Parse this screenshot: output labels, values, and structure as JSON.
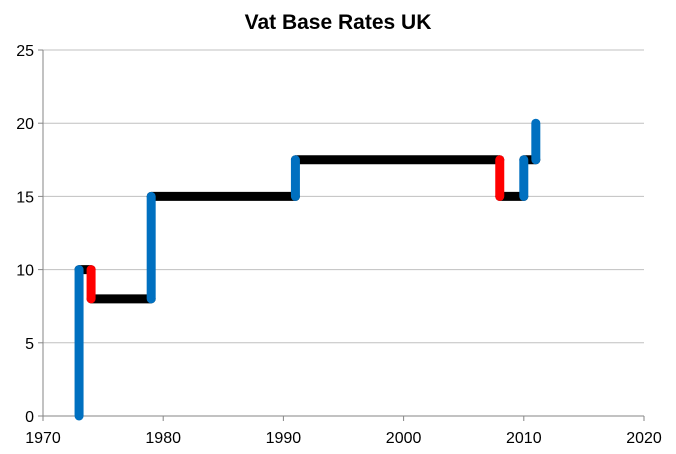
{
  "chart_data": {
    "type": "line",
    "title": "Vat Base Rates UK",
    "xlabel": "",
    "ylabel": "",
    "xlim": [
      1970,
      2020
    ],
    "ylim": [
      0,
      25
    ],
    "x_ticks": [
      "1970",
      "1980",
      "1990",
      "2000",
      "2010",
      "2020"
    ],
    "y_ticks": [
      "0",
      "5",
      "10",
      "15",
      "20",
      "25"
    ],
    "grid": "horizontal",
    "legend": "none",
    "colors": {
      "level": "#000000",
      "increase": "#0070c0",
      "decrease": "#ff0000",
      "grid": "#c0c0c0"
    },
    "series": [
      {
        "role": "rate-levels",
        "color": "#000000",
        "segments": [
          {
            "x": [
              1973,
              1974
            ],
            "y": [
              10,
              10
            ]
          },
          {
            "x": [
              1974,
              1979
            ],
            "y": [
              8,
              8
            ]
          },
          {
            "x": [
              1979,
              1991
            ],
            "y": [
              15,
              15
            ]
          },
          {
            "x": [
              1991,
              2008
            ],
            "y": [
              17.5,
              17.5
            ]
          },
          {
            "x": [
              2008,
              2010
            ],
            "y": [
              15,
              15
            ]
          },
          {
            "x": [
              2010,
              2011
            ],
            "y": [
              17.5,
              17.5
            ]
          }
        ]
      },
      {
        "role": "rate-increases",
        "color": "#0070c0",
        "segments": [
          {
            "x": [
              1973,
              1973
            ],
            "y": [
              0,
              10
            ]
          },
          {
            "x": [
              1979,
              1979
            ],
            "y": [
              8,
              15
            ]
          },
          {
            "x": [
              1991,
              1991
            ],
            "y": [
              15,
              17.5
            ]
          },
          {
            "x": [
              2010,
              2010
            ],
            "y": [
              15,
              17.5
            ]
          },
          {
            "x": [
              2011,
              2011
            ],
            "y": [
              17.5,
              20
            ]
          }
        ]
      },
      {
        "role": "rate-decreases",
        "color": "#ff0000",
        "segments": [
          {
            "x": [
              1974,
              1974
            ],
            "y": [
              10,
              8
            ]
          },
          {
            "x": [
              2008,
              2008
            ],
            "y": [
              17.5,
              15
            ]
          }
        ]
      }
    ]
  }
}
